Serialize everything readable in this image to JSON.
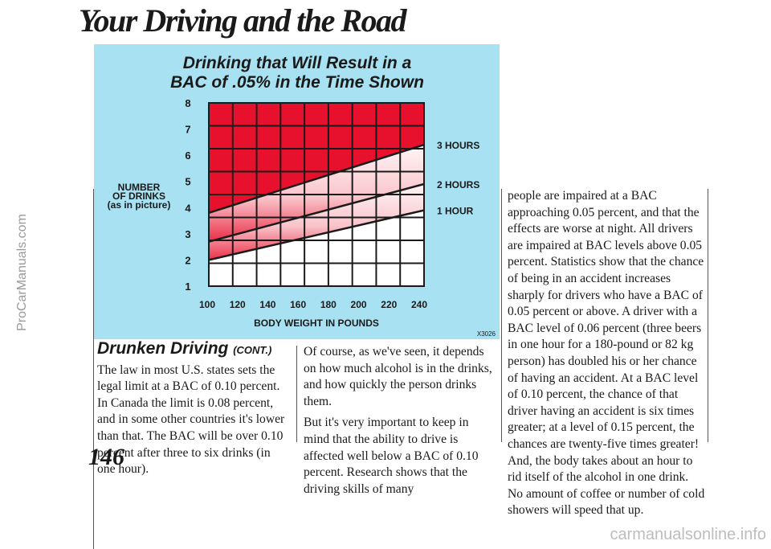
{
  "page": {
    "title": "Your Driving and the Road",
    "page_number": "146",
    "side_watermark": "ProCarManuals.com",
    "bottom_watermark": "carmanualsonline.info"
  },
  "chart_data": {
    "type": "line",
    "title": "Drinking that Will Result in a BAC of .05% in the Time Shown",
    "title_lines": [
      "Drinking that Will Result in a",
      "BAC of .05% in the Time Shown"
    ],
    "xlabel": "BODY WEIGHT IN POUNDS",
    "ylabel_lines": [
      "NUMBER",
      "OF DRINKS",
      "(as in picture)"
    ],
    "x_ticks": [
      100,
      120,
      140,
      160,
      180,
      200,
      220,
      240
    ],
    "y_ticks": [
      1,
      2,
      3,
      4,
      5,
      6,
      7,
      8
    ],
    "xlim": [
      100,
      240
    ],
    "ylim": [
      1,
      8
    ],
    "series": [
      {
        "name": "3 HOURS",
        "x": [
          100,
          240
        ],
        "y": [
          3.8,
          6.4
        ]
      },
      {
        "name": "2 HOURS",
        "x": [
          100,
          240
        ],
        "y": [
          2.7,
          4.9
        ]
      },
      {
        "name": "1 HOUR",
        "x": [
          100,
          240
        ],
        "y": [
          2.0,
          3.9
        ]
      }
    ],
    "code": "X3026",
    "colors": {
      "background": "#a8e1f1",
      "fill": "#e8112d",
      "grid": "#1a1a1a"
    }
  },
  "section": {
    "heading": "Drunken Driving",
    "heading_suffix": "(CONT.)"
  },
  "columns": [
    {
      "paragraphs": [
        "The law in most U.S. states sets the legal limit at a BAC of 0.10 percent. In Canada the limit is 0.08 percent, and in some other countries it's lower than that. The BAC will be over 0.10 percent after three to six drinks (in one hour)."
      ]
    },
    {
      "paragraphs": [
        "Of course, as we've seen, it depends on how much alcohol is in the drinks, and how quickly the person drinks them.",
        "But it's very important to keep in mind that the ability to drive is affected well below a BAC of 0.10 percent. Research shows that the driving skills of many"
      ]
    },
    {
      "paragraphs": [
        "people are impaired at a BAC approaching 0.05 percent, and that the effects are worse at night. All drivers are impaired at BAC levels above 0.05 percent. Statistics show that the chance of being in an accident increases sharply for drivers who have a BAC of 0.05 percent or above. A driver with a BAC level of 0.06 percent (three beers in one hour for a 180-pound or 82 kg person) has doubled his or her chance of having an accident. At a BAC level of 0.10 percent, the chance of that driver having an accident is six times greater; at a level of 0.15 percent, the chances are twenty-five times greater! And, the body takes about an hour to rid itself of the alcohol in one drink. No amount of coffee or number of cold showers will speed that up."
      ]
    }
  ]
}
